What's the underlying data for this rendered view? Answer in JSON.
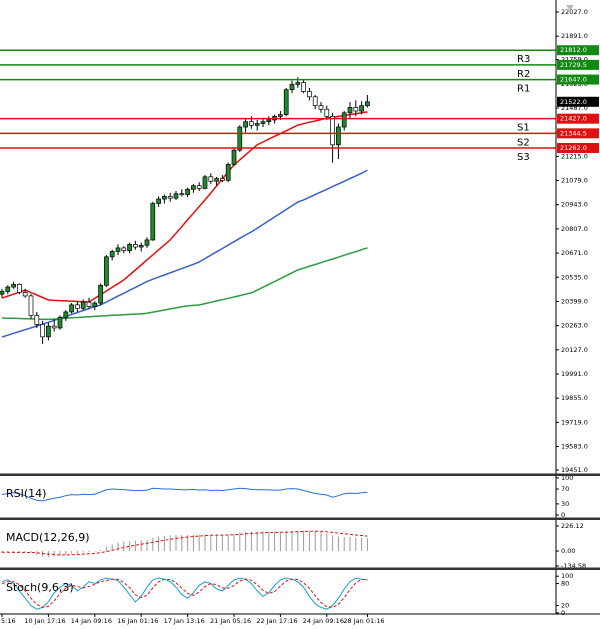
{
  "chart_data": [
    {
      "type": "candlestick",
      "categories": [
        "5:16",
        null,
        null,
        null,
        null,
        null,
        null,
        null,
        "10 Jan 17:16",
        null,
        null,
        null,
        null,
        null,
        null,
        null,
        "14 Jan 09:16",
        null,
        null,
        null,
        null,
        null,
        null,
        null,
        "16 Jan 01:16",
        null,
        null,
        null,
        null,
        null,
        null,
        null,
        "17 Jan 13:16",
        null,
        null,
        null,
        null,
        null,
        null,
        null,
        "21 Jan 05:16",
        null,
        null,
        null,
        null,
        null,
        null,
        null,
        "22 Jan 17:16",
        null,
        null,
        null,
        null,
        null,
        null,
        null,
        "24 Jan 09:16",
        null,
        null,
        null,
        null,
        null,
        null,
        "28 Jan 01:16"
      ],
      "open": [
        20440,
        20455,
        20480,
        20495,
        20450,
        20430,
        20320,
        20270,
        20200,
        20260,
        20250,
        20310,
        20340,
        20380,
        20360,
        20395,
        20370,
        20390,
        20490,
        20650,
        20680,
        20700,
        20685,
        20720,
        20705,
        20715,
        20745,
        20950,
        20975,
        20990,
        20980,
        21005,
        21000,
        21030,
        21050,
        21035,
        21100,
        21075,
        21090,
        21080,
        21170,
        21250,
        21380,
        21410,
        21390,
        21400,
        21410,
        21420,
        21440,
        21450,
        21590,
        21620,
        21630,
        21580,
        21550,
        21500,
        21480,
        21440,
        21280,
        21380,
        21460,
        21490,
        21470,
        21500
      ],
      "high": [
        20470,
        20490,
        20510,
        20500,
        20470,
        20440,
        20340,
        20290,
        20280,
        20300,
        20320,
        20350,
        20390,
        20400,
        20410,
        20420,
        20400,
        20500,
        20660,
        20690,
        20720,
        20710,
        20730,
        20740,
        20730,
        20760,
        20960,
        20990,
        21000,
        21010,
        21020,
        21030,
        21040,
        21060,
        21070,
        21110,
        21120,
        21100,
        21110,
        21180,
        21260,
        21390,
        21430,
        21440,
        21420,
        21430,
        21440,
        21450,
        21470,
        21600,
        21640,
        21660,
        21650,
        21600,
        21560,
        21520,
        21500,
        21460,
        21400,
        21470,
        21520,
        21530,
        21525,
        21560
      ],
      "low": [
        20420,
        20440,
        20470,
        20440,
        20420,
        20300,
        20250,
        20160,
        20180,
        20230,
        20240,
        20290,
        20330,
        20340,
        20350,
        20360,
        20350,
        20380,
        20480,
        20630,
        20660,
        20670,
        20670,
        20690,
        20680,
        20700,
        20740,
        20930,
        20950,
        20960,
        20970,
        20990,
        20985,
        21010,
        21020,
        21030,
        21060,
        21050,
        21070,
        21070,
        21160,
        21240,
        21350,
        21370,
        21360,
        21380,
        21390,
        21400,
        21420,
        21440,
        21570,
        21600,
        21570,
        21530,
        21480,
        21460,
        21420,
        21180,
        21200,
        21360,
        21430,
        21440,
        21450,
        21490
      ],
      "close": [
        20455,
        20480,
        20495,
        20450,
        20430,
        20320,
        20270,
        20200,
        20260,
        20250,
        20310,
        20340,
        20380,
        20360,
        20395,
        20370,
        20390,
        20490,
        20650,
        20680,
        20700,
        20685,
        20720,
        20705,
        20715,
        20745,
        20950,
        20975,
        20990,
        20980,
        21005,
        21000,
        21030,
        21050,
        21035,
        21100,
        21075,
        21090,
        21080,
        21170,
        21250,
        21380,
        21410,
        21390,
        21400,
        21410,
        21420,
        21440,
        21450,
        21590,
        21620,
        21630,
        21580,
        21550,
        21500,
        21480,
        21440,
        21280,
        21380,
        21460,
        21490,
        21470,
        21500,
        21522
      ],
      "up_color": "#1f8a2e",
      "down_color": "#ffffff",
      "outline_color": "#000000",
      "overlays": [
        {
          "color": "#e01010",
          "values": [
            20418,
            20429,
            20440,
            20452,
            20463,
            20449,
            20435,
            20421,
            20407,
            20405,
            20404,
            20402,
            20401,
            20399,
            20398,
            20396,
            20417,
            20437,
            20458,
            20479,
            20499,
            20520,
            20548,
            20576,
            20604,
            20633,
            20661,
            20689,
            20717,
            20745,
            20783,
            20820,
            20858,
            20895,
            20933,
            20970,
            21009,
            21049,
            21088,
            21128,
            21167,
            21195,
            21224,
            21252,
            21280,
            21296,
            21312,
            21328,
            21343,
            21359,
            21375,
            21391,
            21399,
            21407,
            21414,
            21422,
            21430,
            21435,
            21440,
            21445,
            21450,
            21455,
            21460,
            21465
          ]
        },
        {
          "color": "#3a5fcd",
          "values": [
            20199,
            20209,
            20220,
            20230,
            20240,
            20250,
            20261,
            20271,
            20282,
            20293,
            20304,
            20315,
            20326,
            20337,
            20348,
            20359,
            20370,
            20379,
            20396,
            20412,
            20429,
            20445,
            20462,
            20478,
            20495,
            20511,
            20524,
            20536,
            20548,
            20560,
            20572,
            20584,
            20596,
            20608,
            20621,
            20640,
            20659,
            20678,
            20697,
            20716,
            20735,
            20754,
            20773,
            20790,
            20811,
            20832,
            20853,
            20874,
            20895,
            20916,
            20937,
            20958,
            20970,
            20985,
            21000,
            21015,
            21030,
            21045,
            21060,
            21075,
            21090,
            21105,
            21120,
            21138
          ]
        },
        {
          "color": "#2e9a44",
          "values": [
            20306,
            20305,
            20304,
            20303,
            20302,
            20301,
            20300,
            20299,
            20298,
            20300,
            20302,
            20305,
            20307,
            20309,
            20311,
            20313,
            20315,
            20317,
            20319,
            20321,
            20322,
            20324,
            20326,
            20328,
            20329,
            20333,
            20339,
            20345,
            20351,
            20357,
            20363,
            20369,
            20374,
            20377,
            20379,
            20387,
            20394,
            20402,
            20409,
            20417,
            20424,
            20432,
            20440,
            20447,
            20463,
            20479,
            20495,
            20511,
            20527,
            20543,
            20560,
            20576,
            20586,
            20597,
            20607,
            20617,
            20628,
            20638,
            20648,
            20659,
            20669,
            20679,
            20690,
            20700
          ]
        }
      ],
      "levels": [
        {
          "label": "R3",
          "value": 21812,
          "value_label": "21812.0",
          "color": "#128a12"
        },
        {
          "label": "R2",
          "value": 21729.5,
          "value_label": "21729.5",
          "color": "#128a12"
        },
        {
          "label": "R1",
          "value": 21647,
          "value_label": "21647.0",
          "color": "#128a12"
        },
        {
          "label": "S1",
          "value": 21427,
          "value_label": "21427.0",
          "color": "#e01010"
        },
        {
          "label": "S2",
          "value": 21344.5,
          "value_label": "21344.5",
          "color": "#e01010"
        },
        {
          "label": "S3",
          "value": 21262,
          "value_label": "21262.0",
          "color": "#e01010"
        }
      ],
      "last_price": {
        "value": 21522,
        "label": "21522.0",
        "color": "#000000"
      },
      "ylim": [
        19428.5,
        22094.5
      ],
      "yticks": [
        {
          "value": 22027,
          "label": "22027.0"
        },
        {
          "value": 21891,
          "label": "21891.0"
        },
        {
          "value": 21759,
          "label": "21759.0"
        },
        {
          "value": 21623,
          "label": "21623.0"
        },
        {
          "value": 21487,
          "label": "21487.0"
        },
        {
          "value": 21351,
          "label": "21351.0"
        },
        {
          "value": 21215,
          "label": "21215.0"
        },
        {
          "value": 21079,
          "label": "21079.0"
        },
        {
          "value": 20943,
          "label": "20943.0"
        },
        {
          "value": 20807,
          "label": "20807.0"
        },
        {
          "value": 20671,
          "label": "20671.0"
        },
        {
          "value": 20535,
          "label": "20535.0"
        },
        {
          "value": 20399,
          "label": "20399.0"
        },
        {
          "value": 20263,
          "label": "20263.0"
        },
        {
          "value": 20127,
          "label": "20127.0"
        },
        {
          "value": 19991,
          "label": "19991.0"
        },
        {
          "value": 19855,
          "label": "19855.0"
        },
        {
          "value": 19719,
          "label": "19719.0"
        },
        {
          "value": 19583,
          "label": "19583.0"
        },
        {
          "value": 19451,
          "label": "19451.0"
        }
      ]
    },
    {
      "type": "line",
      "title": "RSI(14)",
      "color": "#2a6fdb",
      "values": [
        55,
        58,
        60,
        57,
        52,
        45,
        40,
        38,
        42,
        45,
        48,
        52,
        55,
        54,
        56,
        55,
        56,
        62,
        68,
        70,
        69,
        68,
        67,
        66,
        66,
        67,
        72,
        71,
        70,
        70,
        69,
        68,
        68,
        69,
        67,
        68,
        66,
        67,
        66,
        68,
        70,
        72,
        71,
        69,
        68,
        68,
        68,
        67,
        67,
        70,
        71,
        70,
        66,
        62,
        58,
        56,
        54,
        48,
        52,
        57,
        59,
        58,
        60,
        61
      ],
      "ylim": [
        -8,
        105
      ],
      "yticks": [
        100,
        70,
        30,
        0
      ]
    },
    {
      "type": "macd",
      "title": "MACD(12,26,9)",
      "histogram": {
        "color": "#9a9a9a",
        "values": [
          -20,
          -15,
          -10,
          -8,
          -10,
          -20,
          -35,
          -50,
          -55,
          -50,
          -45,
          -35,
          -25,
          -20,
          -15,
          -10,
          -5,
          10,
          40,
          60,
          75,
          85,
          90,
          95,
          98,
          100,
          120,
          130,
          138,
          142,
          145,
          145,
          146,
          148,
          148,
          150,
          150,
          148,
          146,
          148,
          152,
          165,
          172,
          175,
          175,
          175,
          174,
          173,
          172,
          178,
          182,
          184,
          183,
          180,
          175,
          168,
          160,
          140,
          132,
          128,
          126,
          122,
          120,
          118
        ]
      },
      "signal": {
        "color": "#e01010",
        "values": [
          -10,
          -11,
          -12,
          -12,
          -12,
          -13,
          -16,
          -22,
          -28,
          -32,
          -35,
          -35,
          -33,
          -31,
          -28,
          -25,
          -21,
          -15,
          -5,
          7,
          20,
          32,
          43,
          53,
          62,
          70,
          79,
          89,
          98,
          106,
          114,
          120,
          126,
          131,
          135,
          139,
          142,
          143,
          144,
          145,
          147,
          150,
          155,
          159,
          162,
          165,
          167,
          168,
          169,
          170,
          172,
          175,
          177,
          178,
          178,
          177,
          174,
          168,
          162,
          156,
          150,
          145,
          140,
          135
        ]
      },
      "ylim": [
        -153,
        280
      ],
      "yticks": [
        226.12,
        {
          "value": 0,
          "label": "0.00"
        },
        -134.58
      ]
    },
    {
      "type": "stochastic",
      "title": "Stoch(9,6,3)",
      "series": [
        {
          "color": "#1aa0c8",
          "values": [
            85,
            90,
            80,
            60,
            40,
            20,
            10,
            15,
            30,
            55,
            70,
            80,
            75,
            60,
            70,
            85,
            80,
            90,
            95,
            92,
            88,
            70,
            50,
            30,
            45,
            70,
            90,
            95,
            92,
            85,
            70,
            50,
            40,
            55,
            75,
            85,
            80,
            65,
            60,
            75,
            90,
            95,
            92,
            80,
            60,
            45,
            55,
            75,
            90,
            95,
            92,
            85,
            70,
            45,
            25,
            15,
            10,
            20,
            40,
            65,
            85,
            95,
            92,
            90
          ]
        },
        {
          "color": "#e01010",
          "dashed": true,
          "values": [
            80,
            85,
            85,
            77,
            60,
            40,
            23,
            15,
            18,
            33,
            52,
            68,
            75,
            72,
            68,
            72,
            78,
            85,
            88,
            92,
            92,
            83,
            69,
            49,
            42,
            48,
            68,
            85,
            92,
            91,
            82,
            68,
            53,
            48,
            57,
            72,
            80,
            77,
            68,
            67,
            75,
            87,
            92,
            89,
            77,
            62,
            53,
            58,
            73,
            87,
            92,
            91,
            82,
            67,
            47,
            28,
            17,
            15,
            23,
            42,
            63,
            82,
            91,
            92
          ]
        }
      ],
      "ylim": [
        -3,
        117
      ],
      "yticks": [
        100,
        80,
        20,
        0
      ]
    }
  ]
}
